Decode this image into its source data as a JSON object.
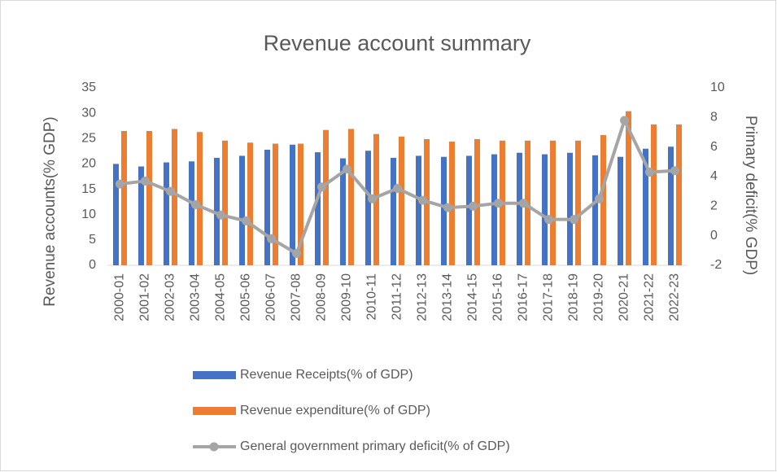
{
  "chart_data": {
    "type": "bar_line",
    "title": "Revenue account summary",
    "y_label": "Revenue accounts(% GDP)",
    "y2_label": "Primary deficit(% GDP)",
    "categories": [
      "2000-01",
      "2001-02",
      "2002-03",
      "2003-04",
      "2004-05",
      "2005-06",
      "2006-07",
      "2007-08",
      "2008-09",
      "2009-10",
      "2010-11",
      "2011-12",
      "2012-13",
      "2013-14",
      "2014-15",
      "2015-16",
      "2016-17",
      "2017-18",
      "2018-19",
      "2019-20",
      "2020-21",
      "2021-22",
      "2022-23"
    ],
    "series": [
      {
        "name": "Revenue Receipts(% of GDP)",
        "color": "#4472c4",
        "kind": "bar",
        "values": [
          20,
          19.5,
          20.3,
          20.5,
          21.2,
          21.6,
          22.8,
          23.8,
          22.3,
          21.1,
          22.6,
          21.2,
          21.6,
          21.4,
          21.6,
          21.9,
          22.2,
          21.9,
          22.2,
          21.7,
          21.4,
          23,
          23.4
        ]
      },
      {
        "name": "Revenue expenditure(% of GDP)",
        "color": "#ed7d31",
        "kind": "bar",
        "values": [
          26.5,
          26.5,
          26.9,
          26.3,
          24.6,
          24.2,
          24,
          24,
          26.7,
          26.9,
          25.9,
          25.4,
          24.9,
          24.4,
          24.9,
          24.6,
          24.6,
          24.6,
          24.6,
          25.7,
          30.4,
          27.8,
          27.8
        ]
      },
      {
        "name": "General government primary deficit(% of GDP)",
        "color": "#a5a5a5",
        "kind": "line",
        "axis": "y2",
        "values": [
          3.5,
          3.7,
          3.0,
          2.1,
          1.4,
          1.0,
          -0.2,
          -1.2,
          3.3,
          4.5,
          2.5,
          3.2,
          2.4,
          1.9,
          2.0,
          2.2,
          2.2,
          1.1,
          1.1,
          2.5,
          7.8,
          4.3,
          4.4
        ]
      }
    ],
    "ylim": [
      0,
      35
    ],
    "yticks": [
      0,
      5,
      10,
      15,
      20,
      25,
      30,
      35
    ],
    "y2lim": [
      -2,
      10
    ],
    "y2ticks": [
      -2,
      0,
      2,
      4,
      6,
      8,
      10
    ],
    "grid": false,
    "legend": "bottom"
  }
}
